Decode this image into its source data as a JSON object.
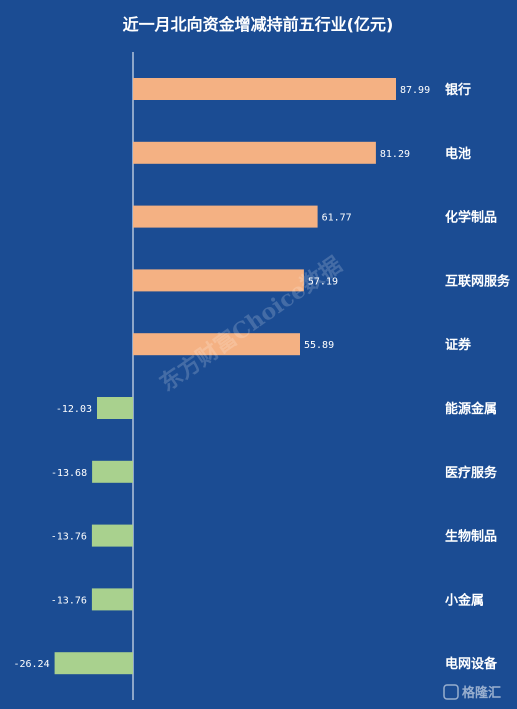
{
  "chart_data": {
    "type": "bar",
    "orientation": "horizontal",
    "title": "近一月北向资金增减持前五行业(亿元)",
    "categories": [
      "银行",
      "电池",
      "化学制品",
      "互联网服务",
      "证券",
      "能源金属",
      "医疗服务",
      "生物制品",
      "小金属",
      "电网设备"
    ],
    "values": [
      87.99,
      81.29,
      61.77,
      57.19,
      55.89,
      -12.03,
      -13.68,
      -13.76,
      -13.76,
      -26.24
    ],
    "value_labels": [
      "87.99",
      "81.29",
      "61.77",
      "57.19",
      "55.89",
      "-12.03",
      "-13.68",
      "-13.76",
      "-13.76",
      "-26.24"
    ],
    "category_label_position": "right",
    "grid": false,
    "colors": {
      "positive": "#f4b183",
      "negative": "#a9d18e",
      "background": "#1b4c93",
      "axis": "#ffffff"
    }
  },
  "watermark": "东方财富Choice数据",
  "brand": {
    "icon": "gelonghui-logo-icon",
    "text": "格隆汇"
  }
}
